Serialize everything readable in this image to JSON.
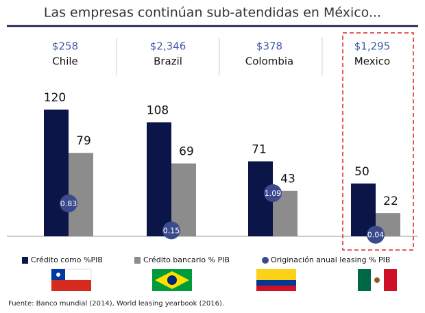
{
  "chart_data": {
    "type": "bar",
    "title": "Las empresas continúan sub-atendidas en México...",
    "categories": [
      "Chile",
      "Brazil",
      "Colombia",
      "Mexico"
    ],
    "gdp_labels": [
      "$258",
      "$2,346",
      "$378",
      "$1,295"
    ],
    "series": [
      {
        "name": "Crédito como %PIB",
        "color": "#0b1547",
        "values": [
          120,
          108,
          71,
          50
        ]
      },
      {
        "name": "Crédito bancario % PIB",
        "color": "#8c8c8c",
        "values": [
          79,
          69,
          43,
          22
        ]
      },
      {
        "name": "Originación anual leasing % PIB",
        "color": "#3a4a8c",
        "axis": "y2",
        "values": [
          0.83,
          0.15,
          1.09,
          0.04
        ]
      }
    ],
    "ylim": [
      0,
      120
    ],
    "y2lim": [
      0,
      3.2
    ],
    "source": "Fuente:   Banco mundial (2014), World leasing yearbook (2016)."
  }
}
